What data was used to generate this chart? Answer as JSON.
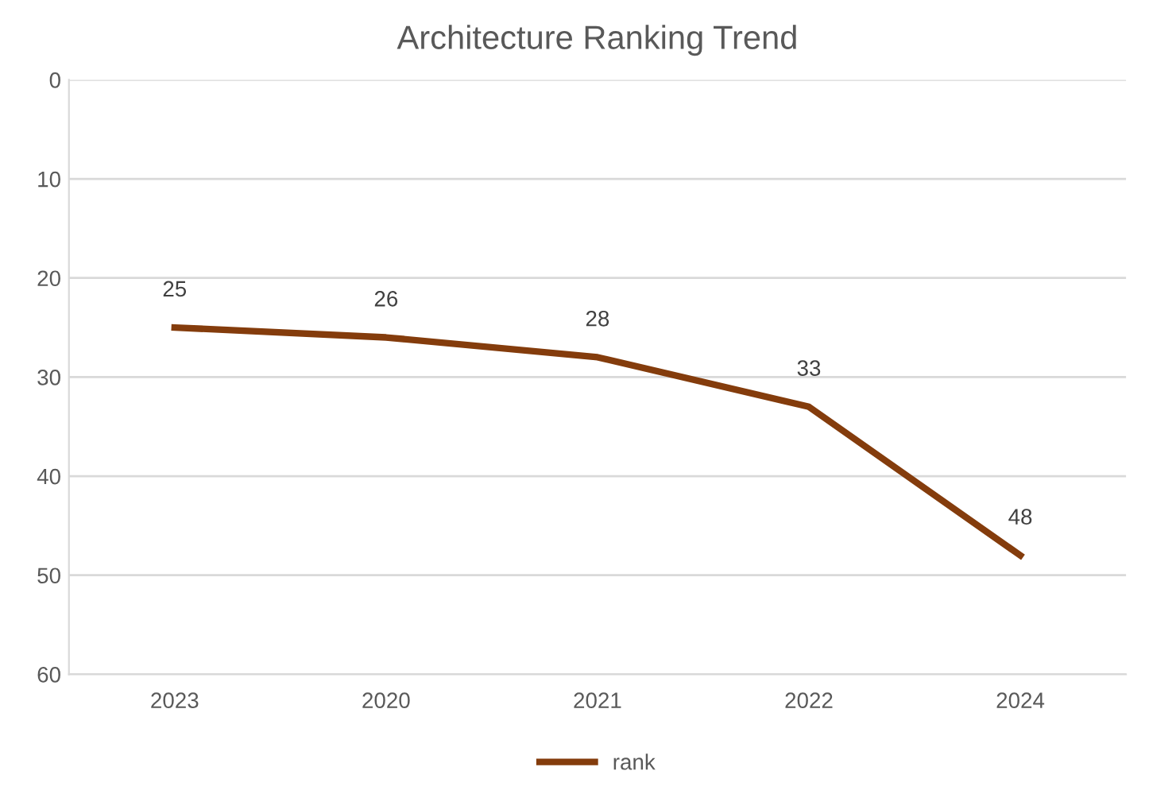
{
  "chart_data": {
    "type": "line",
    "title": "Architecture Ranking Trend",
    "categories": [
      "2023",
      "2020",
      "2021",
      "2022",
      "2024"
    ],
    "series": [
      {
        "name": "rank",
        "color": "#843c0c",
        "values": [
          25,
          26,
          28,
          33,
          48
        ]
      }
    ],
    "ylim": [
      60,
      0
    ],
    "yticks": [
      0,
      10,
      20,
      30,
      40,
      50,
      60
    ],
    "grid": "y",
    "legend": "bottom",
    "data_labels": true,
    "marker": "none",
    "line_style": "solid"
  }
}
